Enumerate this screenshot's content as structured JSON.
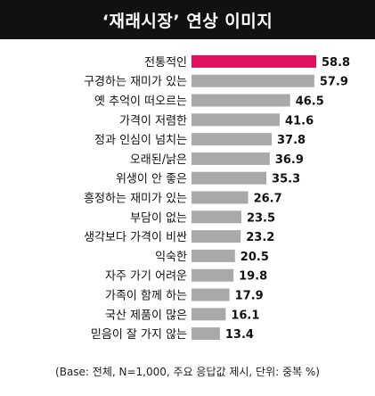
{
  "colors": {
    "title_bg": "#111111",
    "highlight": "#e0115f",
    "bar": "#a9a9a9",
    "text": "#111111"
  },
  "chart_data": {
    "type": "bar",
    "orientation": "horizontal",
    "title": "‘재래시장’ 연상 이미지",
    "categories": [
      "전통적인",
      "구경하는 재미가 있는",
      "옛 추억이 떠오르는",
      "가격이 저렴한",
      "정과 인심이 넘치는",
      "오래된/낡은",
      "위생이 안 좋은",
      "흥정하는 재미가 있는",
      "부담이 없는",
      "생각보다 가격이 비싼",
      "익숙한",
      "자주 가기 어려운",
      "가족이 함께 하는",
      "국산 제품이 많은",
      "믿음이 잘 가지 않는"
    ],
    "values": [
      58.8,
      57.9,
      46.5,
      41.6,
      37.8,
      36.9,
      35.3,
      26.7,
      23.5,
      23.2,
      20.5,
      19.8,
      17.9,
      16.1,
      13.4
    ],
    "value_labels": [
      "58.8",
      "57.9",
      "46.5",
      "41.6",
      "37.8",
      "36.9",
      "35.3",
      "26.7",
      "23.5",
      "23.2",
      "20.5",
      "19.8",
      "17.9",
      "16.1",
      "13.4"
    ],
    "highlight_index": 0,
    "xlim": [
      0,
      60
    ],
    "grid": false,
    "legend": false
  },
  "footnote": "(Base: 전체, N=1,000, 주요 응답값 제시, 단위: 중복 %)"
}
